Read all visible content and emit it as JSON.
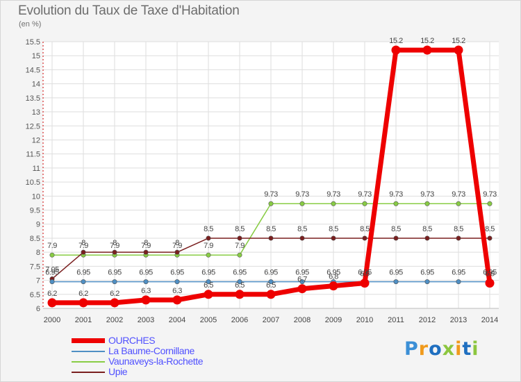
{
  "chart_data": {
    "type": "line",
    "title": "Evolution du Taux de Taxe d'Habitation",
    "subtitle": "(en %)",
    "x": [
      "2000",
      "2001",
      "2002",
      "2003",
      "2004",
      "2005",
      "2006",
      "2007",
      "2008",
      "2009",
      "2010",
      "2011",
      "2012",
      "2013",
      "2014"
    ],
    "ylim": [
      6,
      15.5
    ],
    "yticks": [
      "6",
      "6.5",
      "7",
      "7.5",
      "8",
      "8.5",
      "9",
      "9.5",
      "10",
      "10.5",
      "11",
      "11.5",
      "12",
      "12.5",
      "13",
      "13.5",
      "14",
      "14.5",
      "15",
      "15.5"
    ],
    "grid": true,
    "legend_position": "bottom-left",
    "series": [
      {
        "name": "OURCHES",
        "color": "#ee0000",
        "values": [
          6.2,
          6.2,
          6.2,
          6.3,
          6.3,
          6.5,
          6.5,
          6.5,
          6.7,
          6.8,
          6.9,
          15.2,
          15.2,
          15.2,
          6.9
        ],
        "labels": [
          "6.2",
          "6.2",
          "6.2",
          "6.3",
          "6.3",
          "6.5",
          "6.5",
          "6.5",
          "6.7",
          "6.8",
          "6.9",
          "15.2",
          "15.2",
          "15.2",
          "6.9"
        ]
      },
      {
        "name": "La Baume-Cornillane",
        "color": "#4f8fc4",
        "values": [
          6.95,
          6.95,
          6.95,
          6.95,
          6.95,
          6.95,
          6.95,
          6.95,
          6.95,
          6.95,
          6.95,
          6.95,
          6.95,
          6.95,
          6.95
        ],
        "labels": [
          "6.95",
          "6.95",
          "6.95",
          "6.95",
          "6.95",
          "6.95",
          "6.95",
          "6.95",
          "6.95",
          "6.95",
          "6.95",
          "6.95",
          "6.95",
          "6.95",
          "6.95"
        ]
      },
      {
        "name": "Vaunaveys-la-Rochette",
        "color": "#88cc44",
        "values": [
          7.9,
          7.9,
          7.9,
          7.9,
          7.9,
          7.9,
          7.9,
          9.73,
          9.73,
          9.73,
          9.73,
          9.73,
          9.73,
          9.73,
          9.73
        ],
        "labels": [
          "7.9",
          "7.9",
          "7.9",
          "7.9",
          "7.9",
          "7.9",
          "7.9",
          "9.73",
          "9.73",
          "9.73",
          "9.73",
          "9.73",
          "9.73",
          "9.73",
          "9.73"
        ]
      },
      {
        "name": "Upie",
        "color": "#7a1f1f",
        "values": [
          7.05,
          8,
          8,
          8,
          8,
          8.5,
          8.5,
          8.5,
          8.5,
          8.5,
          8.5,
          8.5,
          8.5,
          8.5,
          8.5
        ],
        "labels": [
          "7.05",
          "8",
          "8",
          "8",
          "8",
          "8.5",
          "8.5",
          "8.5",
          "8.5",
          "8.5",
          "8.5",
          "8.5",
          "8.5",
          "8.5",
          "8.5"
        ]
      }
    ]
  },
  "logo": {
    "text": "Proxiti",
    "colors": [
      "#3b8fd6",
      "#f09a1c",
      "#1f6fc0",
      "#8cc63f",
      "#f09a1c",
      "#1f6fc0",
      "#8cc63f"
    ]
  }
}
